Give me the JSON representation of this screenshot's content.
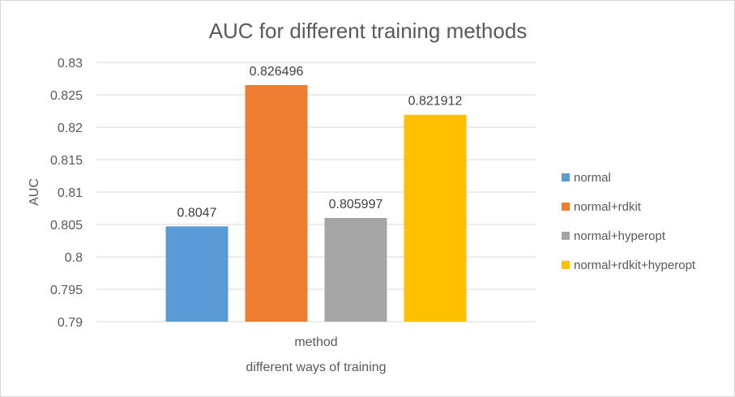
{
  "chart_data": {
    "type": "bar",
    "title": "AUC for different training methods",
    "xlabel": "different ways of training",
    "ylabel": "AUC",
    "categories": [
      "method"
    ],
    "series": [
      {
        "name": "normal",
        "values": [
          0.8047
        ],
        "label": "0.8047",
        "color": "#5b9bd5"
      },
      {
        "name": "normal+rdkit",
        "values": [
          0.826496
        ],
        "label": "0.826496",
        "color": "#ed7d31"
      },
      {
        "name": "normal+hyperopt",
        "values": [
          0.805997
        ],
        "label": "0.805997",
        "color": "#a5a5a5"
      },
      {
        "name": "normal+rdkit+hyperopt",
        "values": [
          0.821912
        ],
        "label": "0.821912",
        "color": "#ffc000"
      }
    ],
    "ylim": [
      0.79,
      0.83
    ],
    "yticks": [
      "0.79",
      "0.795",
      "0.8",
      "0.805",
      "0.81",
      "0.815",
      "0.82",
      "0.825",
      "0.83"
    ],
    "grid": true,
    "legend_position": "right"
  }
}
